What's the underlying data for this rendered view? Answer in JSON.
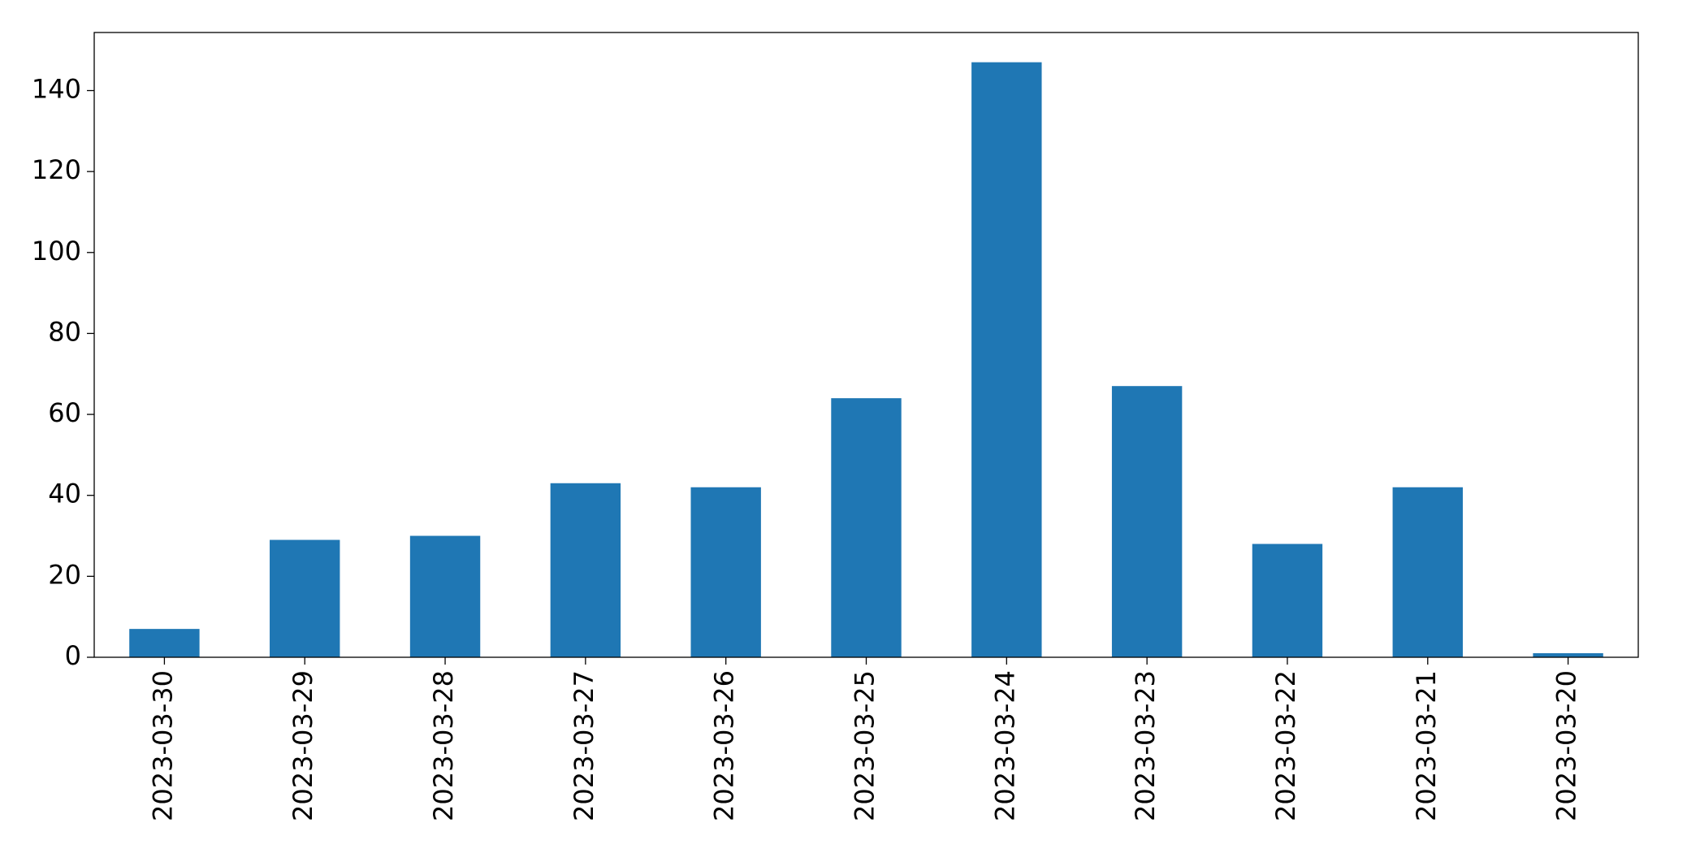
{
  "chart_data": {
    "type": "bar",
    "categories": [
      "2023-03-30",
      "2023-03-29",
      "2023-03-28",
      "2023-03-27",
      "2023-03-26",
      "2023-03-25",
      "2023-03-24",
      "2023-03-23",
      "2023-03-22",
      "2023-03-21",
      "2023-03-20"
    ],
    "values": [
      7,
      29,
      30,
      43,
      42,
      64,
      147,
      67,
      28,
      42,
      1
    ],
    "color": "#1f77b4",
    "ylim": [
      0,
      154.35
    ],
    "yticks": [
      0,
      20,
      40,
      60,
      80,
      100,
      120,
      140
    ],
    "grid": false
  }
}
